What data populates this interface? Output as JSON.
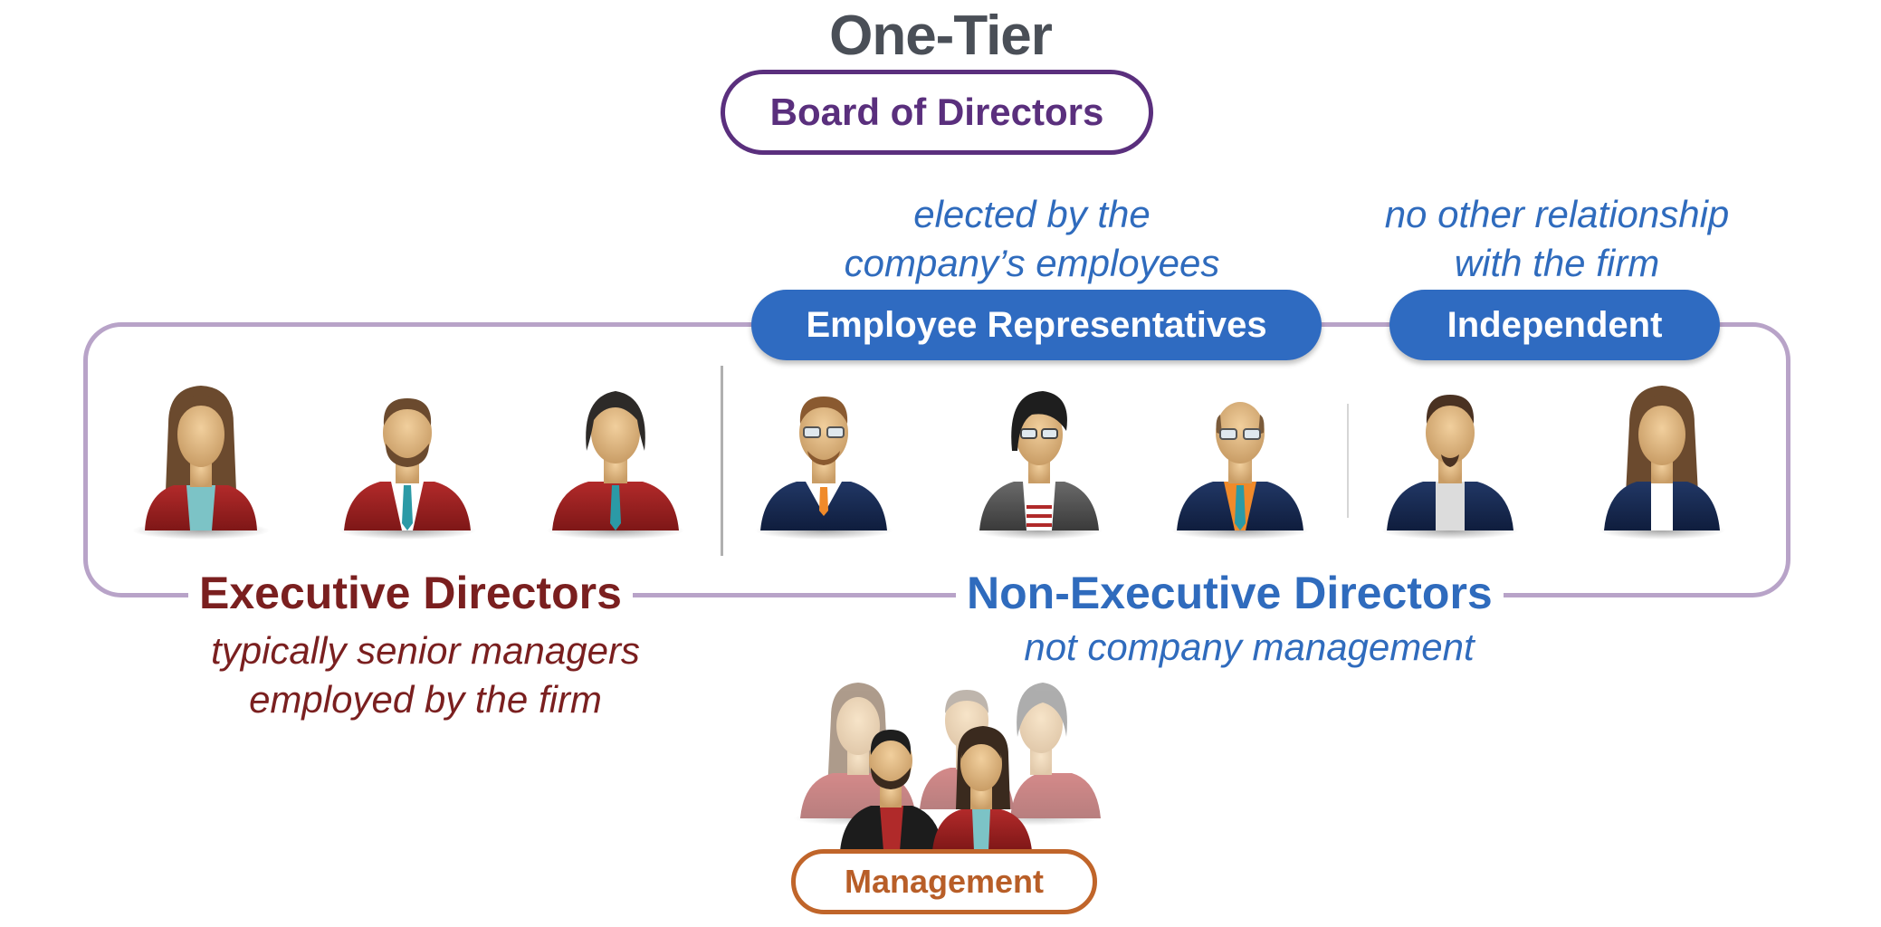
{
  "title": "One-Tier",
  "board_label": "Board of Directors",
  "notes": {
    "employee_reps_line1": "elected by the",
    "employee_reps_line2": "company’s employees",
    "independent_line1": "no other relationship",
    "independent_line2": "with the firm",
    "executive_line1": "typically senior managers",
    "executive_line2": "employed by the firm",
    "nonexecutive": "not company management"
  },
  "pills": {
    "employee_reps": "Employee Representatives",
    "independent": "Independent"
  },
  "groups": {
    "executive": "Executive Directors",
    "nonexecutive": "Non-Executive Directors"
  },
  "management_label": "Management",
  "colors": {
    "board_purple": "#5a2f7d",
    "frame_lavender": "#b8a3c8",
    "pill_blue": "#2f6bc1",
    "executive_red": "#7a1f1f",
    "nonexecutive_blue": "#2f6bbd",
    "management_orange": "#c0652a"
  },
  "avatars": [
    {
      "group": "executive",
      "icon": "woman-red-jacket-icon"
    },
    {
      "group": "executive",
      "icon": "bearded-man-red-suit-icon"
    },
    {
      "group": "executive",
      "icon": "long-haired-man-red-shirt-icon"
    },
    {
      "group": "employee_reps",
      "icon": "man-glasses-navy-sweater-icon"
    },
    {
      "group": "employee_reps",
      "icon": "woman-glasses-grey-jacket-icon"
    },
    {
      "group": "employee_reps",
      "icon": "bald-man-glasses-navy-suit-icon"
    },
    {
      "group": "independent",
      "icon": "man-goatee-navy-suit-icon"
    },
    {
      "group": "independent",
      "icon": "woman-navy-suit-icon"
    }
  ]
}
